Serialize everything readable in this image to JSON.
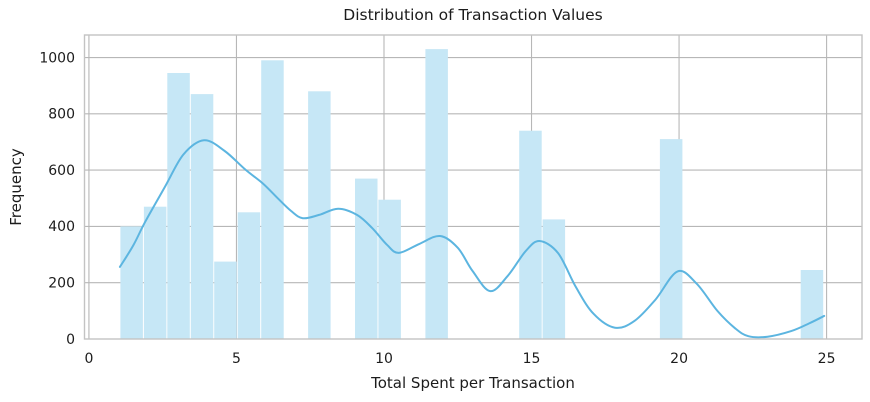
{
  "figure": {
    "background": "#ffffff"
  },
  "chart_data": {
    "type": "bar",
    "subtype": "histogram-with-kde-overlay",
    "title": "Distribution of Transaction Values",
    "xlabel": "Total Spent per Transaction",
    "ylabel": "Frequency",
    "xlim": [
      -0.15,
      26.2
    ],
    "ylim": [
      0,
      1080
    ],
    "xticks": [
      0,
      5,
      10,
      15,
      20,
      25
    ],
    "yticks": [
      0,
      200,
      400,
      600,
      800,
      1000
    ],
    "grid": true,
    "legend": false,
    "bins": {
      "start": 1.05,
      "width": 0.795,
      "heights": [
        400,
        470,
        945,
        870,
        275,
        450,
        990,
        0,
        880,
        0,
        570,
        495,
        0,
        1030,
        0,
        0,
        0,
        740,
        425,
        0,
        0,
        0,
        0,
        710,
        0,
        0,
        0,
        0,
        0,
        245
      ]
    },
    "kde_points": [
      [
        1.05,
        256
      ],
      [
        1.5,
        332
      ],
      [
        1.9,
        415
      ],
      [
        2.6,
        545
      ],
      [
        3.2,
        655
      ],
      [
        3.9,
        706
      ],
      [
        4.6,
        668
      ],
      [
        5.3,
        602
      ],
      [
        5.9,
        552
      ],
      [
        6.4,
        500
      ],
      [
        6.85,
        455
      ],
      [
        7.25,
        429
      ],
      [
        7.8,
        441
      ],
      [
        8.45,
        463
      ],
      [
        9.1,
        440
      ],
      [
        9.6,
        394
      ],
      [
        10.1,
        335
      ],
      [
        10.5,
        306
      ],
      [
        11.2,
        338
      ],
      [
        11.9,
        366
      ],
      [
        12.5,
        324
      ],
      [
        13.0,
        242
      ],
      [
        13.6,
        170
      ],
      [
        14.2,
        225
      ],
      [
        14.8,
        312
      ],
      [
        15.27,
        348
      ],
      [
        15.9,
        305
      ],
      [
        16.5,
        185
      ],
      [
        17.1,
        90
      ],
      [
        17.83,
        40
      ],
      [
        18.5,
        65
      ],
      [
        19.2,
        140
      ],
      [
        19.95,
        240
      ],
      [
        20.6,
        196
      ],
      [
        21.3,
        100
      ],
      [
        21.9,
        38
      ],
      [
        22.35,
        10
      ],
      [
        23.0,
        8
      ],
      [
        23.8,
        28
      ],
      [
        24.4,
        55
      ],
      [
        24.92,
        82
      ]
    ],
    "colors": {
      "bar_fill": "#c6e7f6",
      "bar_gap": "#ffffff",
      "kde_line": "#5cb5e0",
      "grid": "#b7b7b7",
      "spine": "#c3c3c3",
      "text": "#1c1c1c"
    }
  }
}
